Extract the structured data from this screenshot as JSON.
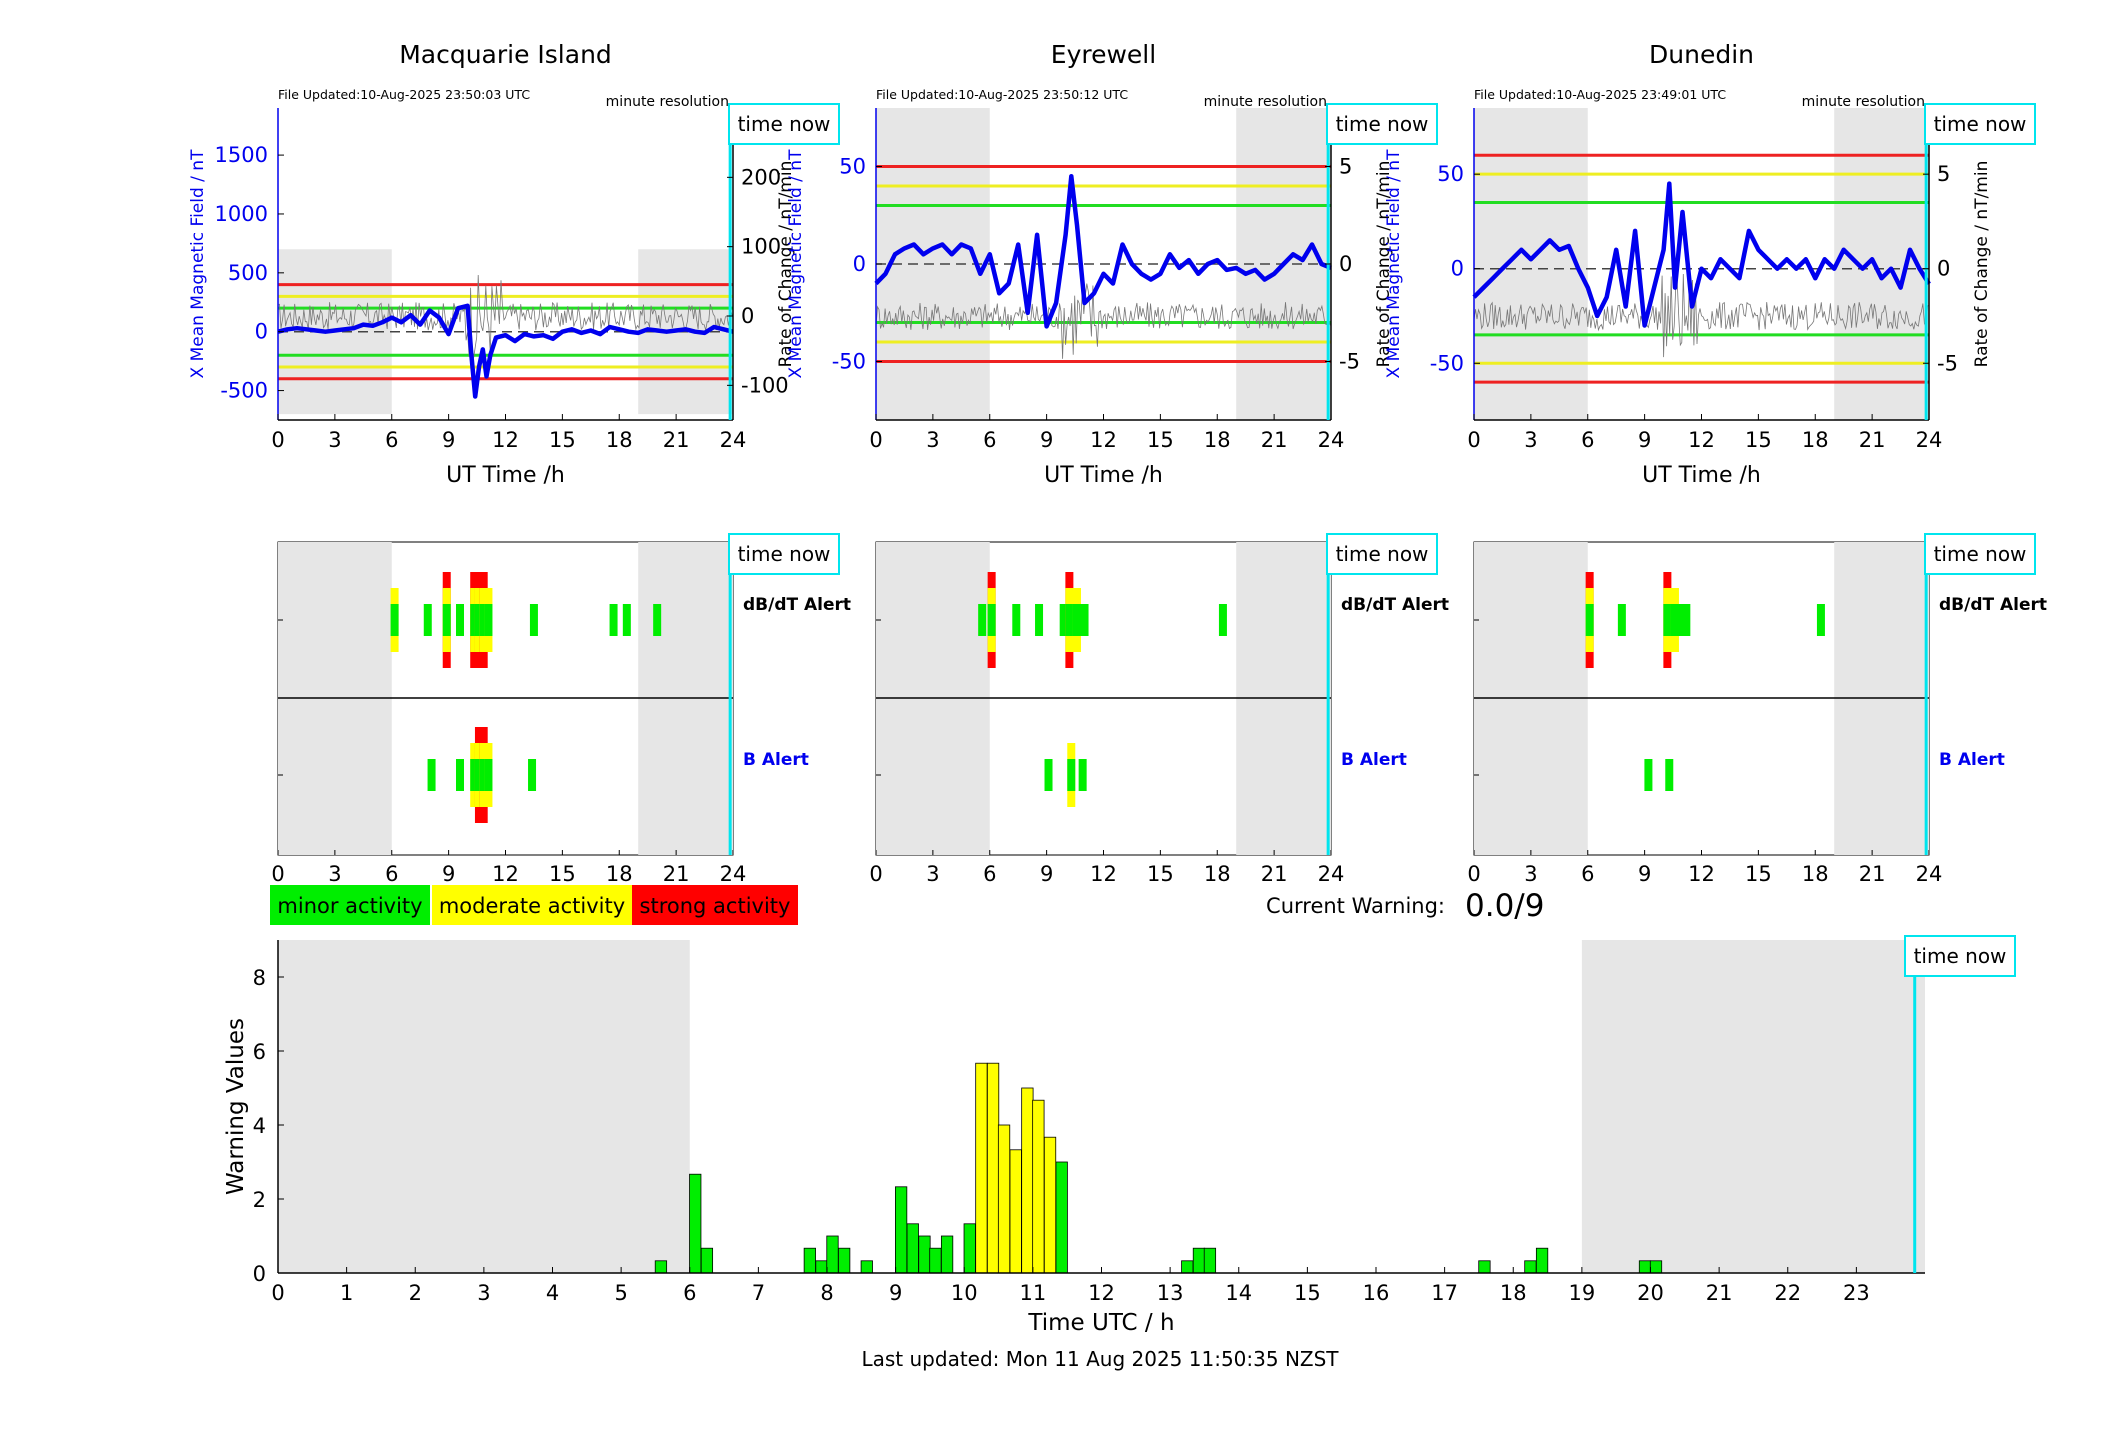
{
  "colors": {
    "minor": "#00ee00",
    "moderate": "#ffff00",
    "strong": "#ff0000",
    "night_band": "#e6e6e6",
    "time_now": "#00e5ee",
    "field_line": "#0000ee",
    "ylabel_left": "#0000ee",
    "threshold_green": "#22dd22",
    "threshold_yellow": "#eeee22",
    "threshold_red": "#ee2222"
  },
  "stations": [
    {
      "name": "Macquarie Island",
      "file_updated": "File Updated:10-Aug-2025 23:50:03 UTC",
      "resolution": "minute resolution",
      "time_now": "time now",
      "ylabel_left": "X Mean Magnetic Field / nT",
      "ylabel_right": "Rate of Change / nT/min",
      "xlabel": "UT Time /h",
      "y_ticks_left": [
        "-500",
        "0",
        "500",
        "1000",
        "1500"
      ],
      "y_ticks_right": [
        "-100",
        "0",
        "100",
        "200"
      ],
      "x_ticks": [
        "0",
        "3",
        "6",
        "9",
        "12",
        "15",
        "18",
        "21",
        "24"
      ],
      "alert_dbdt_label": "dB/dT Alert",
      "alert_b_label": "B Alert",
      "alert_time_now_label": "time now"
    },
    {
      "name": "Eyrewell",
      "file_updated": "File Updated:10-Aug-2025 23:50:12 UTC",
      "resolution": "minute resolution",
      "time_now": "time now",
      "ylabel_left": "X Mean Magnetic Field / nT",
      "ylabel_right": "Rate of Change / nT/min",
      "xlabel": "UT Time /h",
      "y_ticks_left": [
        "-50",
        "0",
        "50"
      ],
      "y_ticks_right": [
        "-5",
        "0",
        "5"
      ],
      "x_ticks": [
        "0",
        "3",
        "6",
        "9",
        "12",
        "15",
        "18",
        "21",
        "24"
      ],
      "alert_dbdt_label": "dB/dT Alert",
      "alert_b_label": "B Alert",
      "alert_time_now_label": "time now"
    },
    {
      "name": "Dunedin",
      "file_updated": "File Updated:10-Aug-2025 23:49:01 UTC",
      "resolution": "minute resolution",
      "time_now": "time now",
      "ylabel_left": "X Mean Magnetic Field / nT",
      "ylabel_right": "Rate of Change / nT/min",
      "xlabel": "UT Time /h",
      "y_ticks_left": [
        "-50",
        "0",
        "50"
      ],
      "y_ticks_right": [
        "-5",
        "0",
        "5"
      ],
      "x_ticks": [
        "0",
        "3",
        "6",
        "9",
        "12",
        "15",
        "18",
        "21",
        "24"
      ],
      "alert_dbdt_label": "dB/dT Alert",
      "alert_b_label": "B Alert",
      "alert_time_now_label": "time now"
    }
  ],
  "legend": {
    "minor": "minor activity",
    "moderate": "moderate activity",
    "strong": "strong activity"
  },
  "current_warning": {
    "label": "Current Warning:",
    "value": "0.0/9"
  },
  "bottom_chart": {
    "ylabel": "Warning Values",
    "xlabel": "Time UTC / h",
    "time_now": "time now",
    "y_ticks": [
      "0",
      "2",
      "4",
      "6",
      "8"
    ],
    "x_ticks": [
      "0",
      "1",
      "2",
      "3",
      "4",
      "5",
      "6",
      "7",
      "8",
      "9",
      "10",
      "11",
      "12",
      "13",
      "14",
      "15",
      "16",
      "17",
      "18",
      "19",
      "20",
      "21",
      "22",
      "23"
    ]
  },
  "footer": "Last updated: Mon 11 Aug 2025 11:50:35 NZST",
  "chart_data": [
    {
      "type": "line",
      "station": "Macquarie Island",
      "xlim": [
        0,
        24
      ],
      "ylim_left": [
        -750,
        1900
      ],
      "ylim_right": [
        -150,
        300
      ],
      "night_hours": [
        [
          0,
          6
        ],
        [
          19,
          24
        ]
      ],
      "night_y": [
        -700,
        700
      ],
      "thresholds_nT": {
        "green": 200,
        "yellow": 300,
        "red": 400
      },
      "time_now_hour": 23.85,
      "series": [
        {
          "x": [
            0,
            0.5,
            1,
            1.5,
            2,
            2.5,
            3,
            3.5,
            4,
            4.5,
            5,
            5.5,
            6,
            6.5,
            7,
            7.5,
            8,
            8.5,
            9,
            9.5,
            10,
            10.2,
            10.4,
            10.6,
            10.8,
            11,
            11.2,
            11.5,
            12,
            12.5,
            13,
            13.5,
            14,
            14.5,
            15,
            15.5,
            16,
            16.5,
            17,
            17.5,
            18,
            18.5,
            19,
            19.5,
            20,
            20.5,
            21,
            21.5,
            22,
            22.5,
            23,
            23.5,
            24
          ],
          "y": [
            0,
            20,
            30,
            20,
            10,
            0,
            10,
            20,
            30,
            60,
            50,
            80,
            120,
            80,
            140,
            60,
            180,
            120,
            -20,
            200,
            220,
            -200,
            -550,
            -300,
            -150,
            -380,
            -200,
            -50,
            -30,
            -80,
            -20,
            -40,
            -30,
            -60,
            0,
            20,
            -10,
            10,
            -20,
            40,
            20,
            0,
            -10,
            20,
            10,
            0,
            10,
            20,
            0,
            -10,
            40,
            20,
            0
          ]
        }
      ]
    },
    {
      "type": "line",
      "station": "Eyrewell",
      "xlim": [
        0,
        24
      ],
      "ylim_left": [
        -80,
        80
      ],
      "ylim_right": [
        -8,
        8
      ],
      "night_hours": [
        [
          0,
          6
        ],
        [
          19,
          24
        ]
      ],
      "thresholds_nT": {
        "green": 30,
        "yellow": 40,
        "red": 50
      },
      "time_now_hour": 23.85,
      "series": [
        {
          "x": [
            0,
            0.5,
            1,
            1.5,
            2,
            2.5,
            3,
            3.5,
            4,
            4.5,
            5,
            5.5,
            6,
            6.5,
            7,
            7.5,
            8,
            8.5,
            9,
            9.5,
            10,
            10.3,
            10.6,
            11,
            11.5,
            12,
            12.5,
            13,
            13.5,
            14,
            14.5,
            15,
            15.5,
            16,
            16.5,
            17,
            17.5,
            18,
            18.5,
            19,
            19.5,
            20,
            20.5,
            21,
            21.5,
            22,
            22.5,
            23,
            23.5,
            24
          ],
          "y": [
            -10,
            -5,
            5,
            8,
            10,
            5,
            8,
            10,
            5,
            10,
            8,
            -5,
            5,
            -15,
            -10,
            10,
            -25,
            15,
            -32,
            -20,
            15,
            45,
            20,
            -20,
            -15,
            -5,
            -10,
            10,
            0,
            -5,
            -8,
            -5,
            5,
            -2,
            2,
            -5,
            0,
            2,
            -3,
            -2,
            -5,
            -3,
            -8,
            -5,
            0,
            5,
            2,
            10,
            0,
            -2
          ]
        }
      ]
    },
    {
      "type": "line",
      "station": "Dunedin",
      "xlim": [
        0,
        24
      ],
      "ylim_left": [
        -80,
        85
      ],
      "ylim_right": [
        -8,
        8.5
      ],
      "night_hours": [
        [
          0,
          6
        ],
        [
          19,
          24
        ]
      ],
      "thresholds_nT": {
        "green": 35,
        "yellow": 50,
        "red": 60
      },
      "time_now_hour": 23.85,
      "series": [
        {
          "x": [
            0,
            0.5,
            1,
            1.5,
            2,
            2.5,
            3,
            3.5,
            4,
            4.5,
            5,
            5.5,
            6,
            6.5,
            7,
            7.5,
            8,
            8.5,
            9,
            9.5,
            10,
            10.3,
            10.6,
            11,
            11.5,
            12,
            12.5,
            13,
            13.5,
            14,
            14.5,
            15,
            15.5,
            16,
            16.5,
            17,
            17.5,
            18,
            18.5,
            19,
            19.5,
            20,
            20.5,
            21,
            21.5,
            22,
            22.5,
            23,
            23.5,
            24
          ],
          "y": [
            -15,
            -10,
            -5,
            0,
            5,
            10,
            5,
            10,
            15,
            10,
            12,
            0,
            -10,
            -25,
            -15,
            10,
            -20,
            20,
            -30,
            -10,
            10,
            45,
            -10,
            30,
            -20,
            0,
            -5,
            5,
            0,
            -5,
            20,
            10,
            5,
            0,
            5,
            0,
            5,
            -5,
            5,
            0,
            10,
            5,
            0,
            5,
            -5,
            0,
            -10,
            10,
            0,
            -8
          ]
        }
      ]
    },
    {
      "type": "heatmap",
      "station": "Macquarie Island",
      "rows": [
        "dB/dT Alert",
        "B Alert"
      ],
      "xlim": [
        0,
        24
      ],
      "time_now_hour": 23.85,
      "dbdt_alerts": [
        {
          "x": 6.15,
          "level": "moderate"
        },
        {
          "x": 7.9,
          "level": "minor"
        },
        {
          "x": 8.9,
          "level": "strong"
        },
        {
          "x": 9.6,
          "level": "minor"
        },
        {
          "x": 10.35,
          "level": "strong"
        },
        {
          "x": 10.6,
          "level": "strong"
        },
        {
          "x": 10.85,
          "level": "strong"
        },
        {
          "x": 11.1,
          "level": "moderate"
        },
        {
          "x": 13.5,
          "level": "minor"
        },
        {
          "x": 17.7,
          "level": "minor"
        },
        {
          "x": 18.4,
          "level": "minor"
        },
        {
          "x": 20.0,
          "level": "minor"
        }
      ],
      "b_alerts": [
        {
          "x": 8.1,
          "level": "minor"
        },
        {
          "x": 9.6,
          "level": "minor"
        },
        {
          "x": 10.35,
          "level": "moderate"
        },
        {
          "x": 10.6,
          "level": "strong"
        },
        {
          "x": 10.85,
          "level": "strong"
        },
        {
          "x": 11.1,
          "level": "moderate"
        },
        {
          "x": 13.4,
          "level": "minor"
        }
      ]
    },
    {
      "type": "heatmap",
      "station": "Eyrewell",
      "rows": [
        "dB/dT Alert",
        "B Alert"
      ],
      "xlim": [
        0,
        24
      ],
      "time_now_hour": 23.85,
      "dbdt_alerts": [
        {
          "x": 5.6,
          "level": "minor"
        },
        {
          "x": 6.1,
          "level": "strong"
        },
        {
          "x": 7.4,
          "level": "minor"
        },
        {
          "x": 8.6,
          "level": "minor"
        },
        {
          "x": 9.9,
          "level": "minor"
        },
        {
          "x": 10.2,
          "level": "strong"
        },
        {
          "x": 10.6,
          "level": "moderate"
        },
        {
          "x": 11.0,
          "level": "minor"
        },
        {
          "x": 18.3,
          "level": "minor"
        }
      ],
      "b_alerts": [
        {
          "x": 9.1,
          "level": "minor"
        },
        {
          "x": 10.3,
          "level": "moderate"
        },
        {
          "x": 10.9,
          "level": "minor"
        }
      ]
    },
    {
      "type": "heatmap",
      "station": "Dunedin",
      "rows": [
        "dB/dT Alert",
        "B Alert"
      ],
      "xlim": [
        0,
        24
      ],
      "time_now_hour": 23.85,
      "dbdt_alerts": [
        {
          "x": 6.1,
          "level": "strong"
        },
        {
          "x": 7.8,
          "level": "minor"
        },
        {
          "x": 10.2,
          "level": "strong"
        },
        {
          "x": 10.6,
          "level": "moderate"
        },
        {
          "x": 10.9,
          "level": "minor"
        },
        {
          "x": 11.2,
          "level": "minor"
        },
        {
          "x": 18.3,
          "level": "minor"
        }
      ],
      "b_alerts": [
        {
          "x": 9.2,
          "level": "minor"
        },
        {
          "x": 10.3,
          "level": "minor"
        }
      ]
    },
    {
      "type": "bar",
      "title": "",
      "xlabel": "Time UTC / h",
      "ylabel": "Warning Values",
      "xlim": [
        0,
        24
      ],
      "ylim": [
        0,
        9
      ],
      "night_hours": [
        [
          0,
          6
        ],
        [
          19,
          24
        ]
      ],
      "time_now_hour": 23.85,
      "bar_width_h": 0.1667,
      "x": [
        5.58,
        6.08,
        6.25,
        7.75,
        7.92,
        8.08,
        8.25,
        8.58,
        9.08,
        9.25,
        9.42,
        9.58,
        9.75,
        10.08,
        10.25,
        10.42,
        10.58,
        10.75,
        10.92,
        11.08,
        11.25,
        11.42,
        13.25,
        13.42,
        13.58,
        17.58,
        18.25,
        18.42,
        19.92,
        20.08
      ],
      "values": [
        0.33,
        2.67,
        0.67,
        0.67,
        0.33,
        1.0,
        0.67,
        0.33,
        2.33,
        1.33,
        1.0,
        0.67,
        1.0,
        1.33,
        5.67,
        5.67,
        4.0,
        3.33,
        5.0,
        4.67,
        3.67,
        3.0,
        0.33,
        0.67,
        0.67,
        0.33,
        0.33,
        0.67,
        0.33,
        0.33
      ],
      "levels": [
        "minor",
        "minor",
        "minor",
        "minor",
        "minor",
        "minor",
        "minor",
        "minor",
        "minor",
        "minor",
        "minor",
        "minor",
        "minor",
        "minor",
        "moderate",
        "moderate",
        "moderate",
        "moderate",
        "moderate",
        "moderate",
        "moderate",
        "minor",
        "minor",
        "minor",
        "minor",
        "minor",
        "minor",
        "minor",
        "minor",
        "minor"
      ]
    }
  ]
}
